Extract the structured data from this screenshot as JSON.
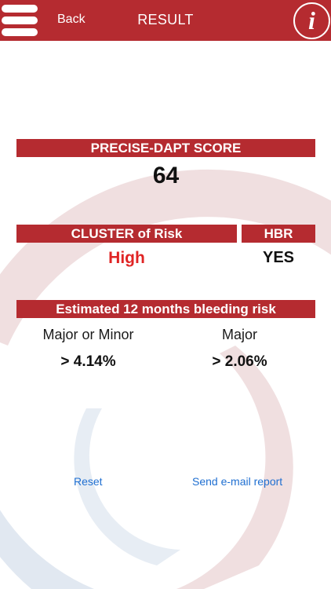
{
  "nav": {
    "back_label": "Back",
    "title": "RESULT",
    "info_glyph": "i"
  },
  "score": {
    "header": "PRECISE-DAPT SCORE",
    "value": "64"
  },
  "risk": {
    "cluster_header": "CLUSTER of Risk",
    "cluster_value": "High",
    "hbr_header": "HBR",
    "hbr_value": "YES"
  },
  "bleeding": {
    "header": "Estimated 12 months bleeding risk",
    "col1_label": "Major or Minor",
    "col1_value": "> 4.14%",
    "col2_label": "Major",
    "col2_value": "> 2.06%"
  },
  "actions": {
    "reset_label": "Reset",
    "email_label": "Send e-mail report"
  },
  "colors": {
    "brand_red": "#b52b30",
    "high_risk_red": "#e02424",
    "link_blue": "#1f6fd1"
  }
}
